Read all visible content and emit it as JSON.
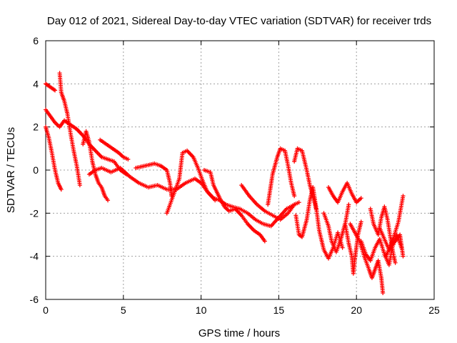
{
  "chart_data": {
    "type": "scatter",
    "title": "Day 012 of 2021, Sidereal Day-to-day VTEC variation (SDTVAR) for receiver trds",
    "xlabel": "GPS time / hours",
    "ylabel": "SDTVAR / TECUs",
    "xlim": [
      0,
      25
    ],
    "ylim": [
      -6,
      6
    ],
    "xticks": [
      0,
      5,
      10,
      15,
      20,
      25
    ],
    "yticks": [
      -6,
      -4,
      -2,
      0,
      2,
      4,
      6
    ],
    "grid": true,
    "marker": "+",
    "series": [
      {
        "name": "SDTVAR",
        "color": "#ff0000",
        "points": [
          [
            0.0,
            4.0
          ],
          [
            0.2,
            3.9
          ],
          [
            0.4,
            3.8
          ],
          [
            0.6,
            3.7
          ],
          [
            0.0,
            2.8
          ],
          [
            0.3,
            2.5
          ],
          [
            0.6,
            2.2
          ],
          [
            0.9,
            2.0
          ],
          [
            1.2,
            2.3
          ],
          [
            1.6,
            2.1
          ],
          [
            2.0,
            1.9
          ],
          [
            2.4,
            1.6
          ],
          [
            2.8,
            1.2
          ],
          [
            3.2,
            0.9
          ],
          [
            3.6,
            0.6
          ],
          [
            4.0,
            0.5
          ],
          [
            4.4,
            0.4
          ],
          [
            4.8,
            0.0
          ],
          [
            5.2,
            -0.2
          ],
          [
            0.0,
            2.0
          ],
          [
            0.2,
            1.5
          ],
          [
            0.4,
            0.8
          ],
          [
            0.6,
            0.0
          ],
          [
            0.8,
            -0.6
          ],
          [
            1.0,
            -0.9
          ],
          [
            0.9,
            4.5
          ],
          [
            1.0,
            3.6
          ],
          [
            1.2,
            3.2
          ],
          [
            1.4,
            2.6
          ],
          [
            1.6,
            1.7
          ],
          [
            1.8,
            0.9
          ],
          [
            2.0,
            0.2
          ],
          [
            2.2,
            -0.7
          ],
          [
            2.4,
            1.2
          ],
          [
            2.6,
            1.8
          ],
          [
            2.8,
            1.3
          ],
          [
            3.0,
            0.4
          ],
          [
            3.2,
            -0.2
          ],
          [
            3.4,
            -0.6
          ],
          [
            3.6,
            -0.8
          ],
          [
            3.8,
            -1.2
          ],
          [
            4.0,
            -1.4
          ],
          [
            3.5,
            1.4
          ],
          [
            3.9,
            1.2
          ],
          [
            4.3,
            1.0
          ],
          [
            4.7,
            0.8
          ],
          [
            5.0,
            0.6
          ],
          [
            5.3,
            0.5
          ],
          [
            2.8,
            -0.2
          ],
          [
            3.2,
            0.0
          ],
          [
            3.6,
            0.1
          ],
          [
            4.2,
            -0.1
          ],
          [
            4.8,
            0.1
          ],
          [
            5.4,
            -0.3
          ],
          [
            6.0,
            -0.6
          ],
          [
            6.6,
            -0.8
          ],
          [
            7.2,
            -0.7
          ],
          [
            7.8,
            -0.9
          ],
          [
            8.4,
            -0.9
          ],
          [
            9.0,
            -0.6
          ],
          [
            9.6,
            -0.4
          ],
          [
            10.0,
            -0.6
          ],
          [
            10.4,
            -1.0
          ],
          [
            10.8,
            -1.3
          ],
          [
            11.2,
            -1.4
          ],
          [
            11.6,
            -1.6
          ],
          [
            12.0,
            -1.7
          ],
          [
            12.5,
            -1.8
          ],
          [
            13.0,
            -2.0
          ],
          [
            13.5,
            -2.3
          ],
          [
            14.0,
            -2.5
          ],
          [
            14.5,
            -2.6
          ],
          [
            15.0,
            -2.2
          ],
          [
            15.5,
            -1.8
          ],
          [
            16.0,
            -1.6
          ],
          [
            16.3,
            -1.5
          ],
          [
            5.8,
            0.1
          ],
          [
            6.4,
            0.2
          ],
          [
            7.0,
            0.3
          ],
          [
            7.4,
            0.2
          ],
          [
            7.8,
            0.0
          ],
          [
            8.0,
            -0.6
          ],
          [
            8.1,
            -1.2
          ],
          [
            7.8,
            -2.0
          ],
          [
            8.3,
            -1.0
          ],
          [
            8.6,
            -0.4
          ],
          [
            8.8,
            0.8
          ],
          [
            9.1,
            0.9
          ],
          [
            9.5,
            0.6
          ],
          [
            9.8,
            0.1
          ],
          [
            10.1,
            -0.5
          ],
          [
            10.4,
            -1.0
          ],
          [
            10.9,
            -1.4
          ],
          [
            10.2,
            0.0
          ],
          [
            10.6,
            -0.1
          ],
          [
            10.8,
            -0.7
          ],
          [
            11.2,
            -1.3
          ],
          [
            11.5,
            -1.7
          ],
          [
            11.8,
            -1.9
          ],
          [
            12.2,
            -1.8
          ],
          [
            12.6,
            -2.1
          ],
          [
            13.0,
            -2.5
          ],
          [
            13.4,
            -2.8
          ],
          [
            13.8,
            -3.0
          ],
          [
            14.1,
            -3.3
          ],
          [
            12.6,
            -0.7
          ],
          [
            13.1,
            -1.2
          ],
          [
            13.6,
            -1.6
          ],
          [
            14.1,
            -1.9
          ],
          [
            14.6,
            -2.1
          ],
          [
            15.1,
            -2.3
          ],
          [
            15.6,
            -2.0
          ],
          [
            16.0,
            -1.6
          ],
          [
            14.3,
            -1.6
          ],
          [
            14.6,
            -0.2
          ],
          [
            14.9,
            0.6
          ],
          [
            15.1,
            1.0
          ],
          [
            15.4,
            0.9
          ],
          [
            15.6,
            0.2
          ],
          [
            15.8,
            -0.6
          ],
          [
            16.0,
            -1.2
          ],
          [
            16.0,
            0.4
          ],
          [
            16.2,
            1.0
          ],
          [
            16.5,
            0.9
          ],
          [
            16.8,
            0.0
          ],
          [
            17.0,
            -0.7
          ],
          [
            17.2,
            -1.2
          ],
          [
            17.4,
            -1.8
          ],
          [
            16.1,
            -2.1
          ],
          [
            16.3,
            -3.0
          ],
          [
            16.5,
            -3.1
          ],
          [
            16.8,
            -2.3
          ],
          [
            17.0,
            -1.4
          ],
          [
            17.2,
            -0.8
          ],
          [
            17.4,
            -1.7
          ],
          [
            17.6,
            -2.8
          ],
          [
            17.9,
            -3.7
          ],
          [
            18.2,
            -4.1
          ],
          [
            18.5,
            -3.6
          ],
          [
            18.8,
            -2.9
          ],
          [
            19.1,
            -3.6
          ],
          [
            18.2,
            -0.8
          ],
          [
            18.5,
            -1.2
          ],
          [
            18.8,
            -1.5
          ],
          [
            19.1,
            -1.0
          ],
          [
            19.4,
            -0.6
          ],
          [
            19.7,
            -1.1
          ],
          [
            20.0,
            -1.5
          ],
          [
            20.3,
            -1.3
          ],
          [
            17.9,
            -2.0
          ],
          [
            18.2,
            -2.6
          ],
          [
            18.4,
            -3.3
          ],
          [
            18.7,
            -3.8
          ],
          [
            19.0,
            -3.2
          ],
          [
            19.3,
            -2.4
          ],
          [
            19.5,
            -1.6
          ],
          [
            19.3,
            -2.6
          ],
          [
            19.5,
            -3.4
          ],
          [
            19.7,
            -4.0
          ],
          [
            19.8,
            -4.8
          ],
          [
            19.9,
            -4.1
          ],
          [
            20.1,
            -3.0
          ],
          [
            20.3,
            -2.4
          ],
          [
            19.6,
            -2.5
          ],
          [
            19.9,
            -2.9
          ],
          [
            20.2,
            -3.3
          ],
          [
            20.5,
            -4.0
          ],
          [
            20.8,
            -4.6
          ],
          [
            21.0,
            -5.0
          ],
          [
            21.2,
            -4.6
          ],
          [
            21.4,
            -4.2
          ],
          [
            21.6,
            -5.0
          ],
          [
            21.7,
            -5.7
          ],
          [
            20.3,
            -3.3
          ],
          [
            20.6,
            -3.9
          ],
          [
            20.9,
            -4.2
          ],
          [
            21.2,
            -3.6
          ],
          [
            21.5,
            -3.2
          ],
          [
            21.8,
            -3.9
          ],
          [
            22.1,
            -4.4
          ],
          [
            22.3,
            -3.6
          ],
          [
            22.6,
            -3.0
          ],
          [
            22.9,
            -3.6
          ],
          [
            20.9,
            -1.8
          ],
          [
            21.1,
            -2.5
          ],
          [
            21.4,
            -3.0
          ],
          [
            21.6,
            -2.2
          ],
          [
            21.8,
            -1.7
          ],
          [
            22.0,
            -2.3
          ],
          [
            22.2,
            -3.2
          ],
          [
            22.4,
            -4.0
          ],
          [
            22.5,
            -4.3
          ],
          [
            21.5,
            -2.7
          ],
          [
            21.8,
            -3.2
          ],
          [
            22.1,
            -3.7
          ],
          [
            22.4,
            -3.1
          ],
          [
            22.7,
            -2.4
          ],
          [
            22.9,
            -1.6
          ],
          [
            23.0,
            -1.2
          ],
          [
            21.9,
            -4.0
          ],
          [
            22.2,
            -3.5
          ],
          [
            22.5,
            -3.3
          ],
          [
            22.8,
            -3.0
          ],
          [
            23.0,
            -4.0
          ]
        ]
      }
    ]
  }
}
